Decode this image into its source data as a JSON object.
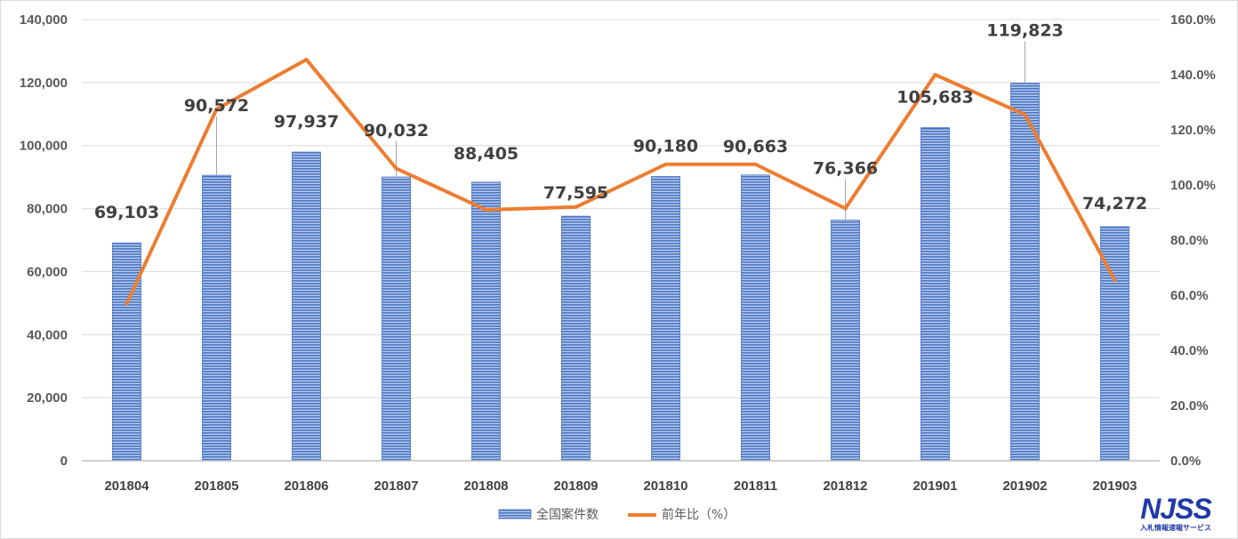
{
  "chart_data": {
    "type": "bar",
    "categories": [
      "201804",
      "201805",
      "201806",
      "201807",
      "201808",
      "201809",
      "201810",
      "201811",
      "201812",
      "201901",
      "201902",
      "201903"
    ],
    "series": [
      {
        "name": "全国案件数",
        "type": "bar",
        "axis": "left",
        "color": "#4472c4",
        "values": [
          69103,
          90572,
          97937,
          90032,
          88405,
          77595,
          90180,
          90663,
          76366,
          105683,
          119823,
          74272
        ],
        "labels": [
          "69,103",
          "90,572",
          "97,937",
          "90,032",
          "88,405",
          "77,595",
          "90,180",
          "90,663",
          "76,366",
          "105,683",
          "119,823",
          "74,272"
        ]
      },
      {
        "name": "前年比（%）",
        "type": "line",
        "axis": "right",
        "color": "#ed7d31",
        "values": [
          57.0,
          127.5,
          145.5,
          106.0,
          91.0,
          92.0,
          107.5,
          107.5,
          91.5,
          140.0,
          125.5,
          65.5
        ]
      }
    ],
    "y_left": {
      "ylim": [
        0,
        140000
      ],
      "ticks": [
        "0",
        "20,000",
        "40,000",
        "60,000",
        "80,000",
        "100,000",
        "120,000",
        "140,000"
      ]
    },
    "y_right": {
      "ylim": [
        0,
        160
      ],
      "ticks": [
        "0.0%",
        "20.0%",
        "40.0%",
        "60.0%",
        "80.0%",
        "100.0%",
        "120.0%",
        "140.0%",
        "160.0%"
      ]
    },
    "grid": true,
    "legend_position": "bottom"
  },
  "logo": {
    "text": "NJSS",
    "subtext": "入札情報速報サービス"
  }
}
